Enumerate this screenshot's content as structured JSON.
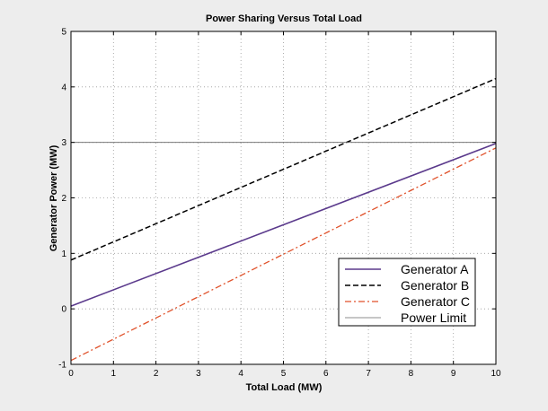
{
  "chart_data": {
    "type": "line",
    "title": "Power Sharing Versus Total Load",
    "xlabel": "Total Load (MW)",
    "ylabel": "Generator Power (MW)",
    "xlim": [
      0,
      10
    ],
    "ylim": [
      -1,
      5
    ],
    "xticks": [
      "0",
      "1",
      "2",
      "3",
      "4",
      "5",
      "6",
      "7",
      "8",
      "9",
      "10"
    ],
    "yticks": [
      "-1",
      "0",
      "1",
      "2",
      "3",
      "4",
      "5"
    ],
    "grid": true,
    "legend_position": "bottom-right",
    "series": [
      {
        "name": "Generator A",
        "x": [
          0,
          10
        ],
        "y": [
          0.05,
          2.98
        ],
        "color": "#5b3a8c",
        "style": "solid"
      },
      {
        "name": "Generator B",
        "x": [
          0,
          10
        ],
        "y": [
          0.88,
          4.15
        ],
        "color": "#000000",
        "style": "dashed"
      },
      {
        "name": "Generator C",
        "x": [
          0,
          10
        ],
        "y": [
          -0.93,
          2.9
        ],
        "color": "#e0512a",
        "style": "dashdot"
      },
      {
        "name": "Power Limit",
        "x": [
          0,
          10
        ],
        "y": [
          3,
          3
        ],
        "color": "#666666",
        "style": "thin"
      }
    ]
  }
}
